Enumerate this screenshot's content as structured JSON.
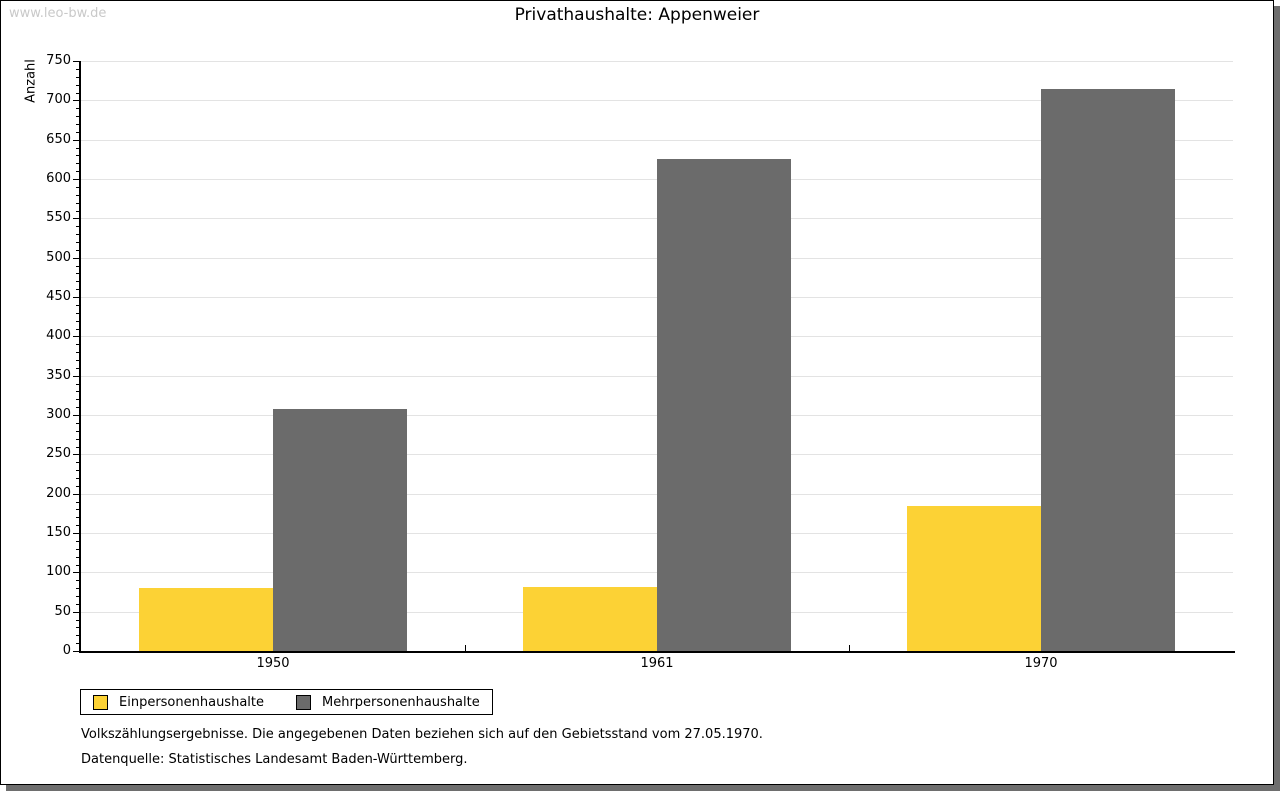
{
  "watermark": "www.leo-bw.de",
  "title": "Privathaushalte: Appenweier",
  "chart_data": {
    "type": "bar",
    "title": "Privathaushalte: Appenweier",
    "ylabel": "Anzahl",
    "xlabel": "",
    "categories": [
      "1950",
      "1961",
      "1970"
    ],
    "series": [
      {
        "name": "Einpersonenhaushalte",
        "color": "#fcd235",
        "values": [
          80,
          82,
          185
        ]
      },
      {
        "name": "Mehrpersonenhaushalte",
        "color": "#6b6b6b",
        "values": [
          308,
          625,
          714
        ]
      }
    ],
    "ylim": [
      0,
      750
    ],
    "ytick_step": 50,
    "yminor_step": 10,
    "grid": true,
    "legend_position": "bottom-left"
  },
  "colors": {
    "grid": "#e3e3e3",
    "axis": "#000000",
    "shadow": "#6e6e6e",
    "watermark": "#c9c9c9"
  },
  "footnotes": [
    "Volkszählungsergebnisse. Die angegebenen Daten beziehen sich auf den Gebietsstand vom 27.05.1970.",
    "Datenquelle: Statistisches Landesamt Baden-Württemberg."
  ]
}
